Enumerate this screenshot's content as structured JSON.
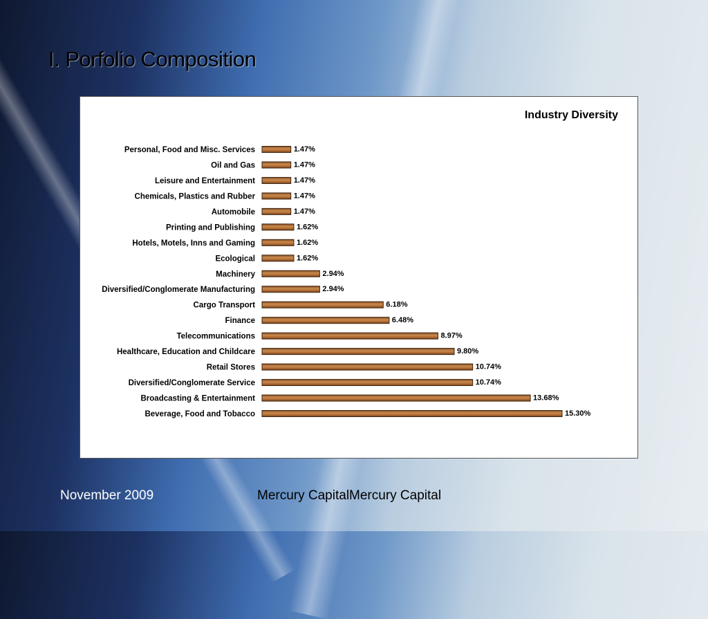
{
  "slide": {
    "title": "I. Porfolio Composition",
    "footer_date": "November 2009",
    "footer_company": "Mercury CapitalMercury Capital"
  },
  "colors": {
    "bar": "#b5733a",
    "bar_border": "#3a2410"
  },
  "chart_data": {
    "type": "bar",
    "orientation": "horizontal",
    "title": "Industry Diversity",
    "xlabel": "",
    "ylabel": "",
    "xlim": [
      0,
      15.3
    ],
    "grid": false,
    "categories": [
      "Personal, Food and Misc. Services",
      "Oil and Gas",
      "Leisure and Entertainment",
      "Chemicals, Plastics and Rubber",
      "Automobile",
      "Printing and Publishing",
      "Hotels, Motels, Inns and Gaming",
      "Ecological",
      "Machinery",
      "Diversified/Conglomerate Manufacturing",
      "Cargo Transport",
      "Finance",
      "Telecommunications",
      "Healthcare, Education and Childcare",
      "Retail Stores",
      "Diversified/Conglomerate Service",
      "Broadcasting & Entertainment",
      "Beverage, Food and Tobacco"
    ],
    "values": [
      1.47,
      1.47,
      1.47,
      1.47,
      1.47,
      1.62,
      1.62,
      1.62,
      2.94,
      2.94,
      6.18,
      6.48,
      8.97,
      9.8,
      10.74,
      10.74,
      13.68,
      15.3
    ],
    "labels": [
      "1.47%",
      "1.47%",
      "1.47%",
      "1.47%",
      "1.47%",
      "1.62%",
      "1.62%",
      "1.62%",
      "2.94%",
      "2.94%",
      "6.18%",
      "6.48%",
      "8.97%",
      "9.80%",
      "10.74%",
      "10.74%",
      "13.68%",
      "15.30%"
    ]
  }
}
